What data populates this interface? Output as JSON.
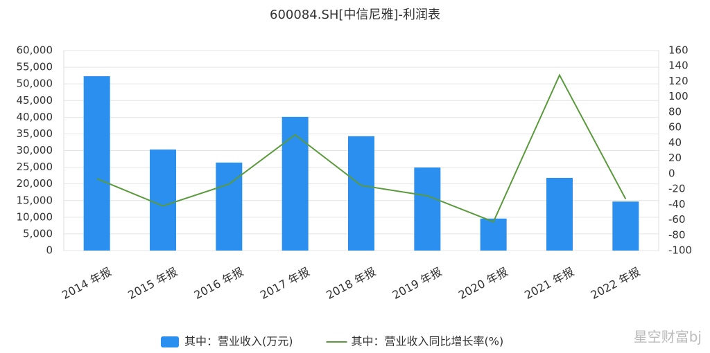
{
  "chart_data": {
    "type": "bar-line",
    "title": "600084.SH[中信尼雅]-利润表",
    "categories": [
      "2014 年报",
      "2015 年报",
      "2016 年报",
      "2017 年报",
      "2018 年报",
      "2019 年报",
      "2020 年报",
      "2021 年报",
      "2022 年报"
    ],
    "series": [
      {
        "name": "其中：营业收入(万元)",
        "type": "bar",
        "color": "#2b8ff0",
        "values": [
          52300,
          30300,
          26400,
          40100,
          34300,
          24900,
          9600,
          21800,
          14700
        ]
      },
      {
        "name": "其中：营业收入同比增长率(%)",
        "type": "line",
        "axis": "y2",
        "color": "#5a9a3c",
        "values": [
          -6.5,
          -42,
          -13.6,
          50.5,
          -15.4,
          -28.8,
          -62.6,
          128,
          -33
        ]
      }
    ],
    "ylim": [
      0,
      60000
    ],
    "yticks": [
      0,
      {
        "value": 5000,
        "label": "5,000"
      },
      {
        "value": 10000,
        "label": "10,000"
      },
      {
        "value": 15000,
        "label": "15,000"
      },
      {
        "value": 20000,
        "label": "20,000"
      },
      {
        "value": 25000,
        "label": "25,000"
      },
      {
        "value": 30000,
        "label": "30,000"
      },
      {
        "value": 35000,
        "label": "35,000"
      },
      {
        "value": 40000,
        "label": "40,000"
      },
      {
        "value": 45000,
        "label": "45,000"
      },
      {
        "value": 50000,
        "label": "50,000"
      },
      {
        "value": 55000,
        "label": "55,000"
      },
      {
        "value": 60000,
        "label": "60,000"
      }
    ],
    "y2lim": [
      -100,
      160
    ],
    "y2ticks": [
      -100,
      -80,
      -60,
      -40,
      -20,
      0,
      20,
      40,
      60,
      80,
      100,
      120,
      140,
      160
    ],
    "grid": true,
    "legend": "bottom",
    "watermark": "星空财富bj"
  }
}
